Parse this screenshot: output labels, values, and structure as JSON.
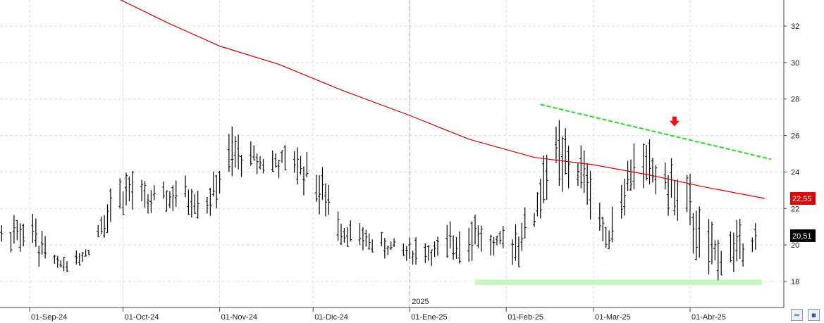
{
  "chart_data": {
    "type": "ohlc",
    "title": "",
    "xlabel": "",
    "ylabel": "",
    "ylim": [
      17.3,
      33.6
    ],
    "y_ticks": [
      18,
      20,
      22,
      24,
      26,
      28,
      30,
      32
    ],
    "y_tick_labels": [
      "18",
      "20",
      "22",
      "24",
      "26",
      "28",
      "30",
      "32"
    ],
    "x_ticks": [
      {
        "date": "2024-09-01",
        "label": "01-Sep-24"
      },
      {
        "date": "2024-10-01",
        "label": "01-Oct-24"
      },
      {
        "date": "2024-11-01",
        "label": "01-Nov-24"
      },
      {
        "date": "2024-12-01",
        "label": "01-Dic-24"
      },
      {
        "date": "2025-01-01",
        "label": "01-Ene-25"
      },
      {
        "date": "2025-02-01",
        "label": "01-Feb-25"
      },
      {
        "date": "2025-03-01",
        "label": "01-Mar-25"
      },
      {
        "date": "2025-04-01",
        "label": "01-Abr-25"
      }
    ],
    "year_marker": {
      "date": "2025-01-01",
      "label": "2025"
    },
    "grid": true,
    "price_series": {
      "color": "#000000",
      "highs": [
        {
          "date": "2024-08-20",
          "value": 21.2
        },
        {
          "date": "2024-09-01",
          "value": 22.1
        },
        {
          "date": "2024-09-10",
          "value": 19.4
        },
        {
          "date": "2024-09-20",
          "value": 19.9
        },
        {
          "date": "2024-09-25",
          "value": 22.8
        },
        {
          "date": "2024-10-01",
          "value": 24.6
        },
        {
          "date": "2024-10-10",
          "value": 23.2
        },
        {
          "date": "2024-10-20",
          "value": 23.9
        },
        {
          "date": "2024-10-28",
          "value": 23.2
        },
        {
          "date": "2024-11-05",
          "value": 26.5
        },
        {
          "date": "2024-11-15",
          "value": 25.2
        },
        {
          "date": "2024-11-25",
          "value": 25.6
        },
        {
          "date": "2024-12-01",
          "value": 25.5
        },
        {
          "date": "2024-12-10",
          "value": 21.8
        },
        {
          "date": "2024-12-20",
          "value": 20.8
        },
        {
          "date": "2024-12-30",
          "value": 20.5
        },
        {
          "date": "2025-01-10",
          "value": 20.5
        },
        {
          "date": "2025-01-20",
          "value": 22.5
        },
        {
          "date": "2025-01-28",
          "value": 20.6
        },
        {
          "date": "2025-02-10",
          "value": 22.5
        },
        {
          "date": "2025-02-15",
          "value": 27.5
        },
        {
          "date": "2025-02-20",
          "value": 26.4
        },
        {
          "date": "2025-02-28",
          "value": 24.9
        },
        {
          "date": "2025-03-05",
          "value": 21.3
        },
        {
          "date": "2025-03-15",
          "value": 26.4
        },
        {
          "date": "2025-03-25",
          "value": 24.9
        },
        {
          "date": "2025-04-01",
          "value": 23.9
        },
        {
          "date": "2025-04-05",
          "value": 21.7
        },
        {
          "date": "2025-04-10",
          "value": 21.0
        },
        {
          "date": "2025-04-18",
          "value": 21.5
        }
      ],
      "lows": [
        {
          "date": "2024-08-20",
          "value": 20.2
        },
        {
          "date": "2024-09-05",
          "value": 18.6
        },
        {
          "date": "2024-09-15",
          "value": 18.5
        },
        {
          "date": "2024-09-25",
          "value": 20.4
        },
        {
          "date": "2024-10-05",
          "value": 21.8
        },
        {
          "date": "2024-10-15",
          "value": 21.6
        },
        {
          "date": "2024-10-28",
          "value": 21.4
        },
        {
          "date": "2024-11-10",
          "value": 24.0
        },
        {
          "date": "2024-11-25",
          "value": 23.4
        },
        {
          "date": "2024-12-10",
          "value": 20.0
        },
        {
          "date": "2024-12-30",
          "value": 18.9
        },
        {
          "date": "2025-01-15",
          "value": 18.7
        },
        {
          "date": "2025-01-25",
          "value": 19.4
        },
        {
          "date": "2025-02-05",
          "value": 18.8
        },
        {
          "date": "2025-02-15",
          "value": 22.3
        },
        {
          "date": "2025-02-25",
          "value": 22.6
        },
        {
          "date": "2025-03-05",
          "value": 19.4
        },
        {
          "date": "2025-03-15",
          "value": 23.1
        },
        {
          "date": "2025-03-25",
          "value": 21.6
        },
        {
          "date": "2025-04-07",
          "value": 17.6
        },
        {
          "date": "2025-04-15",
          "value": 18.3
        },
        {
          "date": "2025-04-22",
          "value": 19.5
        }
      ],
      "last": {
        "date": "2025-04-22",
        "value": 20.51
      }
    },
    "moving_average": {
      "color": "#cc0000",
      "points": [
        {
          "date": "2024-09-27",
          "value": 33.7
        },
        {
          "date": "2024-10-15",
          "value": 32.2
        },
        {
          "date": "2024-11-01",
          "value": 30.9
        },
        {
          "date": "2024-11-20",
          "value": 29.9
        },
        {
          "date": "2024-12-10",
          "value": 28.5
        },
        {
          "date": "2025-01-01",
          "value": 27.1
        },
        {
          "date": "2025-01-20",
          "value": 25.8
        },
        {
          "date": "2025-02-10",
          "value": 24.8
        },
        {
          "date": "2025-03-01",
          "value": 24.4
        },
        {
          "date": "2025-03-20",
          "value": 23.8
        },
        {
          "date": "2025-04-05",
          "value": 23.2
        },
        {
          "date": "2025-04-25",
          "value": 22.55
        }
      ],
      "last_value": 22.55
    },
    "resistance_line": {
      "color": "#22dd22",
      "start": {
        "date": "2025-02-12",
        "value": 27.7
      },
      "end": {
        "date": "2025-04-27",
        "value": 24.7
      }
    },
    "support_zone": {
      "color": "#c8f5c0",
      "start_date": "2025-01-22",
      "end_date": "2025-04-24",
      "low": 17.8,
      "high": 18.1
    },
    "down_arrow": {
      "date": "2025-03-27",
      "value": 26.5,
      "color": "#ee1111"
    },
    "price_labels": [
      {
        "text": "22,55",
        "value": 22.55,
        "background": "#e00000"
      },
      {
        "text": "20,51",
        "value": 20.51,
        "background": "#000000"
      }
    ]
  },
  "toolbar": {
    "zoom_icon": "zoom-icon",
    "save_icon": "save-icon"
  }
}
